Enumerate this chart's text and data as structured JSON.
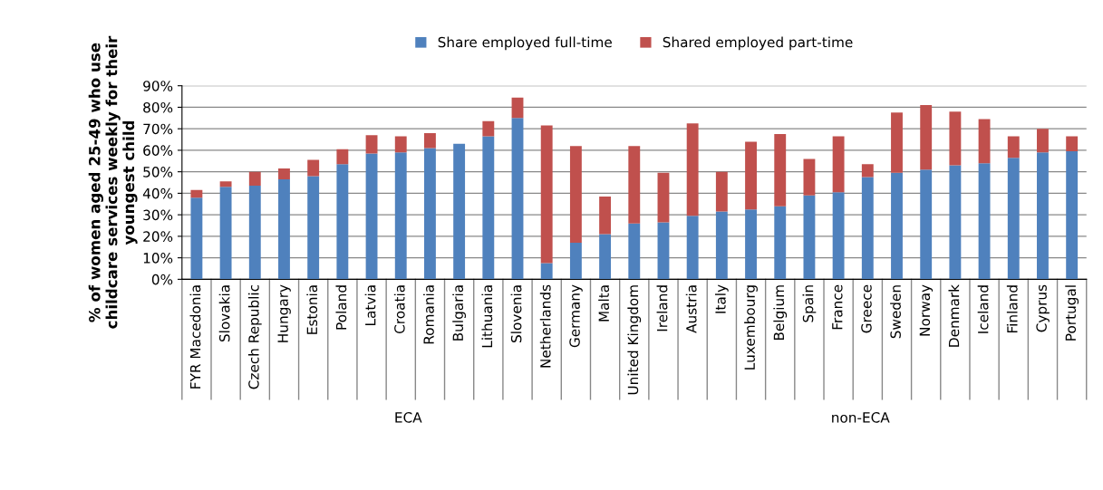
{
  "chart_data": {
    "type": "bar",
    "stacked": true,
    "ylabel": "% of women aged 25-49 who use\nchildcare services weekly for their\nyoungest child",
    "categories": [
      "FYR Macedonia",
      "Slovakia",
      "Czech Republic",
      "Hungary",
      "Estonia",
      "Poland",
      "Latvia",
      "Croatia",
      "Romania",
      "Bulgaria",
      "Lithuania",
      "Slovenia",
      "Netherlands",
      "Germany",
      "Malta",
      "United Kingdom",
      "Ireland",
      "Austria",
      "Italy",
      "Luxembourg",
      "Belgium",
      "Spain",
      "France",
      "Greece",
      "Sweden",
      "Norway",
      "Denmark",
      "Iceland",
      "Finland",
      "Cyprus",
      "Portugal"
    ],
    "series": [
      {
        "name": "Share employed full-time",
        "color": "#4f81bd",
        "values": [
          38,
          43,
          43.5,
          46.5,
          48,
          53.5,
          58.5,
          59,
          61,
          63,
          66.5,
          75,
          7.5,
          17,
          21,
          26,
          26.5,
          29.5,
          31.5,
          32.5,
          34,
          39,
          40.5,
          47.5,
          49.5,
          51,
          53,
          54,
          56.5,
          59,
          59.5
        ]
      },
      {
        "name": "Shared employed part-time",
        "color": "#c0504d",
        "values": [
          3.5,
          2.5,
          6.5,
          5,
          7.5,
          7,
          8.5,
          7.5,
          7,
          0,
          7,
          9.5,
          64,
          45,
          17.5,
          36,
          23,
          43,
          18.5,
          31.5,
          33.5,
          17,
          26,
          6,
          28,
          30,
          25,
          20.5,
          10,
          11,
          7
        ]
      }
    ],
    "ylim": [
      0,
      90
    ],
    "yticks": [
      {
        "value": 0,
        "label": "0%"
      },
      {
        "value": 10,
        "label": "10%"
      },
      {
        "value": 20,
        "label": "20%"
      },
      {
        "value": 30,
        "label": "30%"
      },
      {
        "value": 40,
        "label": "40%"
      },
      {
        "value": 50,
        "label": "50%"
      },
      {
        "value": 60,
        "label": "60%"
      },
      {
        "value": 70,
        "label": "70%"
      },
      {
        "value": 80,
        "label": "80%"
      },
      {
        "value": 90,
        "label": "90%"
      }
    ],
    "grid": "y",
    "legend": "top",
    "annotations": [
      "ECA",
      "non-ECA"
    ]
  }
}
